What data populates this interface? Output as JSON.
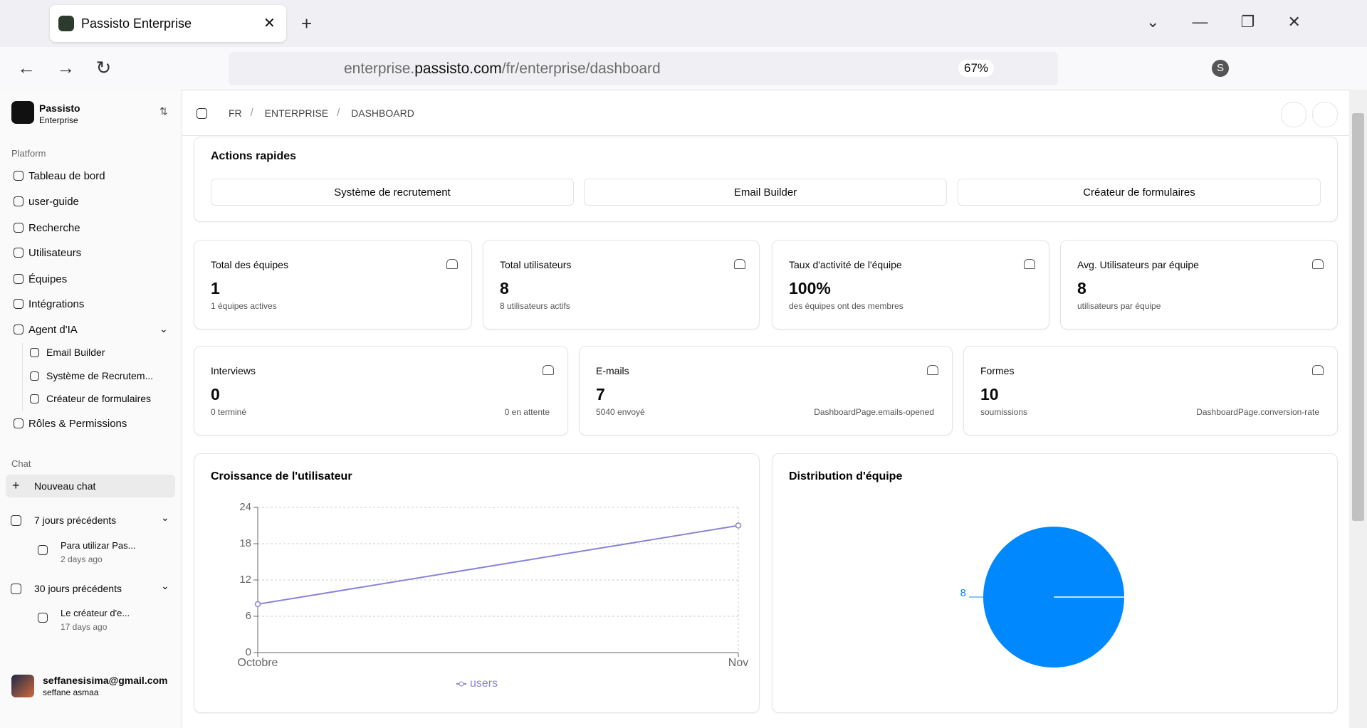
{
  "browser": {
    "tab_title": "Passisto Enterprise",
    "url_subdomain": "enterprise.",
    "url_domain": "passisto.com",
    "url_path": "/fr/enterprise/dashboard",
    "zoom": "67%",
    "profile": "S"
  },
  "sidebar": {
    "brand": "Passisto",
    "brand_sub": "Enterprise",
    "platform_label": "Platform",
    "nav": [
      "Tableau de bord",
      "user-guide",
      "Recherche",
      "Utilisateurs",
      "Équipes",
      "Intégrations",
      "Agent d'IA"
    ],
    "agent_items": [
      "Email Builder",
      "Système de Recrutem...",
      "Créateur de formulaires"
    ],
    "roles": "Rôles & Permissions",
    "chat_label": "Chat",
    "new_chat": "Nouveau chat",
    "history": [
      {
        "label": "7 jours précédents",
        "items": [
          {
            "title": "Para utilizar Pas...",
            "time": "2 days ago"
          }
        ]
      },
      {
        "label": "30 jours précédents",
        "items": [
          {
            "title": "Le créateur d'e...",
            "time": "17 days ago"
          }
        ]
      }
    ],
    "user": {
      "email": "seffanesisima@gmail.com",
      "name": "seffane asmaa"
    }
  },
  "breadcrumb": [
    "FR",
    "ENTERPRISE",
    "DASHBOARD"
  ],
  "quick_actions": {
    "title": "Actions rapides",
    "buttons": [
      "Système de recrutement",
      "Email Builder",
      "Créateur de formulaires"
    ]
  },
  "stats": [
    {
      "label": "Total des équipes",
      "value": "1",
      "note": "1 équipes actives"
    },
    {
      "label": "Total utilisateurs",
      "value": "8",
      "note": "8 utilisateurs actifs"
    },
    {
      "label": "Taux d'activité de l'équipe",
      "value": "100%",
      "note": "des équipes ont des membres"
    },
    {
      "label": "Avg. Utilisateurs par équipe",
      "value": "8",
      "note": "utilisateurs par équipe"
    }
  ],
  "stats2": [
    {
      "label": "Interviews",
      "value": "0",
      "note": "0 terminé",
      "extra": "0 en attente"
    },
    {
      "label": "E-mails",
      "value": "7",
      "note": "5040 envoyé",
      "extra": "DashboardPage.emails-opened"
    },
    {
      "label": "Formes",
      "value": "10",
      "note": "soumissions",
      "extra": "DashboardPage.conversion-rate"
    }
  ],
  "chart_data": [
    {
      "type": "line",
      "title": "Croissance de l'utilisateur",
      "categories": [
        "Octobre",
        "Nov"
      ],
      "series": [
        {
          "name": "users",
          "color": "#8884d8",
          "values": [
            8,
            21
          ]
        }
      ],
      "ylim": [
        0,
        24
      ],
      "yticks": [
        0,
        6,
        12,
        18,
        24
      ],
      "grid": true
    },
    {
      "type": "pie",
      "title": "Distribution d'équipe",
      "values": [
        8
      ],
      "color": "#0088fe"
    }
  ]
}
